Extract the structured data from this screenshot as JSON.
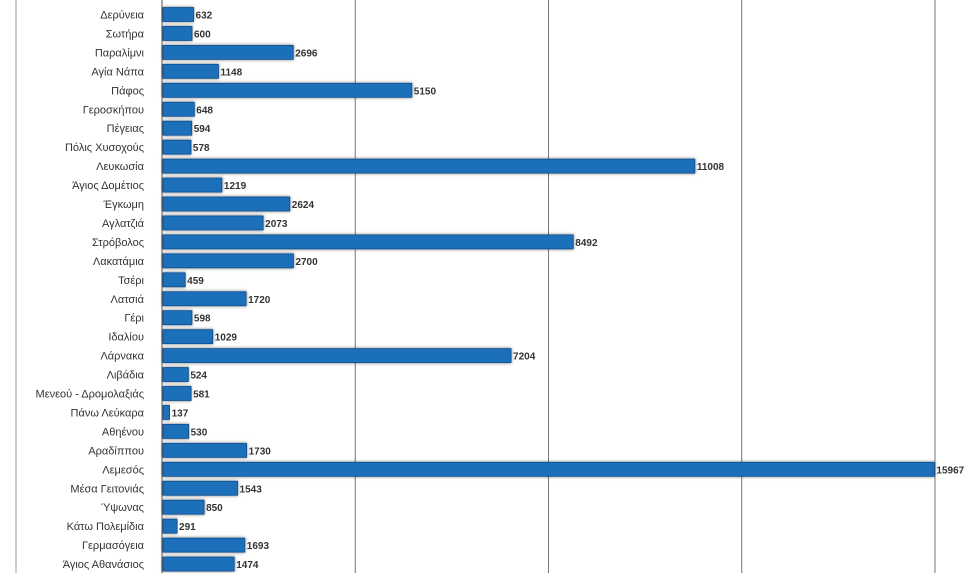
{
  "chart_data": {
    "type": "bar",
    "orientation": "horizontal",
    "categories": [
      "Δερύνεια",
      "Σωτήρα",
      "Παραλίμνι",
      "Αγία Νάπα",
      "Πάφος",
      "Γεροσκήπου",
      "Πέγειας",
      "Πόλις Χυσοχούς",
      "Λευκωσία",
      "Άγιος Δομέτιος",
      "Έγκωμη",
      "Αγλατζιά",
      "Στρόβολος",
      "Λακατάμια",
      "Τσέρι",
      "Λατσιά",
      "Γέρι",
      "Ιδαλίου",
      "Λάρνακα",
      "Λιβάδια",
      "Μενεού - Δρομολαξιάς",
      "Πάνω Λεύκαρα",
      "Αθηένου",
      "Αραδίππου",
      "Λεμεσός",
      "Μέσα Γειτονιάς",
      "Ύψωνας",
      "Κάτω Πολεμίδια",
      "Γερμασόγεια",
      "Άγιος Αθανάσιος"
    ],
    "values": [
      632,
      600,
      2696,
      1148,
      5150,
      648,
      594,
      578,
      11008,
      1219,
      2624,
      2073,
      8492,
      2700,
      459,
      1720,
      598,
      1029,
      7204,
      524,
      581,
      137,
      530,
      1730,
      15967,
      1543,
      850,
      291,
      1693,
      1474
    ],
    "value_labels": [
      "632",
      "600",
      "2696",
      "1148",
      "5150",
      "648",
      "594",
      "578",
      "11008",
      "1219",
      "2624",
      "2073",
      "8492",
      "2700",
      "459",
      "1720",
      "598",
      "1029",
      "7204",
      "524",
      "581",
      "137",
      "530",
      "1730",
      "15967",
      "1543",
      "850",
      "291",
      "1693",
      "1474"
    ],
    "xlim": [
      0,
      16000
    ],
    "gridlines_at": [
      4000,
      8000,
      12000,
      16000
    ],
    "grid": true,
    "bar_color": "#1b6fba",
    "bar_edge_color": "#0f4f8f"
  }
}
